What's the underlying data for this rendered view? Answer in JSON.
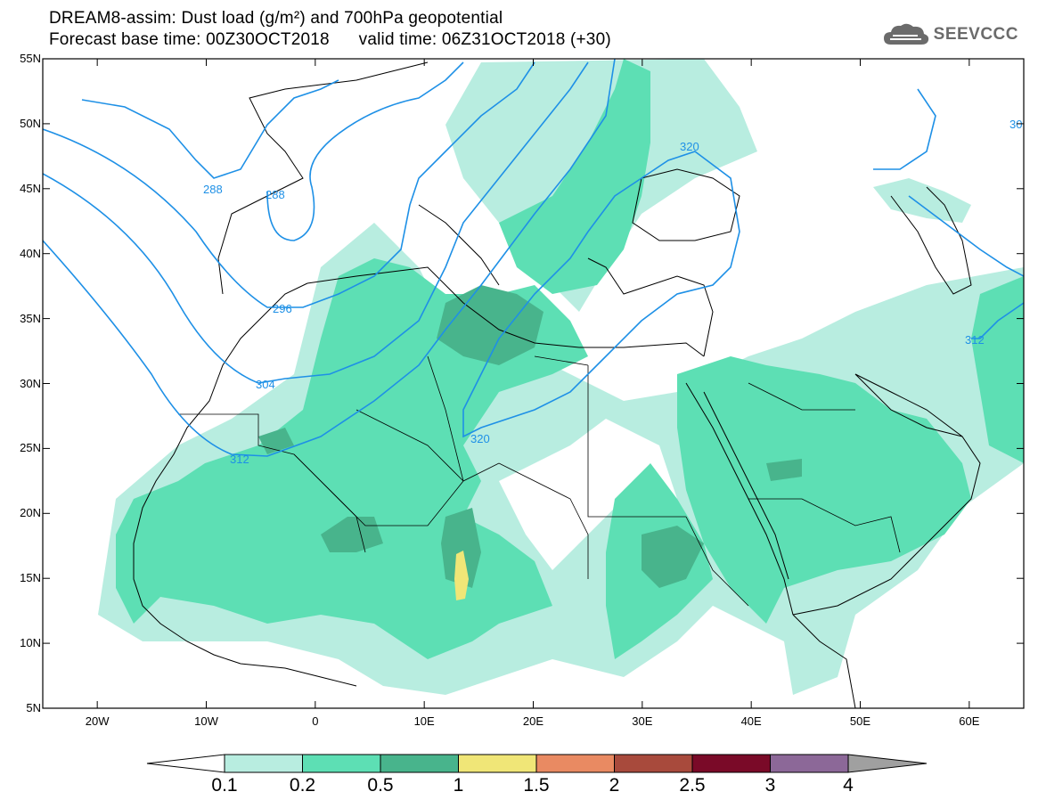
{
  "title": {
    "line1": "DREAM8-assim: Dust load (g/m²) and 700hPa geopotential",
    "line2": "Forecast base time: 00Z30OCT2018      valid time: 06Z31OCT2018 (+30)"
  },
  "logo": {
    "text": "SEEVCCC",
    "icon": "cloud-icon",
    "color": "#6b6b6b"
  },
  "map": {
    "lon_range": [
      -25,
      65
    ],
    "lat_range": [
      5,
      55
    ],
    "lat_ticks": [
      "55N",
      "50N",
      "45N",
      "40N",
      "35N",
      "30N",
      "25N",
      "20N",
      "15N",
      "10N",
      "5N"
    ],
    "lon_ticks": [
      "20W",
      "10W",
      "0",
      "10E",
      "20E",
      "30E",
      "40E",
      "50E",
      "60E"
    ],
    "contour_color": "#1e90e6",
    "contour_labels": [
      "288",
      "288",
      "296",
      "304",
      "312",
      "320",
      "320",
      "312",
      "30"
    ]
  },
  "colorbar": {
    "labels": [
      "0.1",
      "0.2",
      "0.5",
      "1",
      "1.5",
      "2",
      "2.5",
      "3",
      "4"
    ],
    "colors": [
      "#ffffff",
      "#b8ede0",
      "#5ddfb4",
      "#48b48c",
      "#f0e677",
      "#e98a62",
      "#a84a3c",
      "#7a0a28",
      "#8c6898",
      "#a0a0a0"
    ]
  },
  "fill_colors": {
    "light": "#b8ede0",
    "medium": "#5ddfb4",
    "dark": "#48b48c",
    "yellow": "#f0e677"
  }
}
